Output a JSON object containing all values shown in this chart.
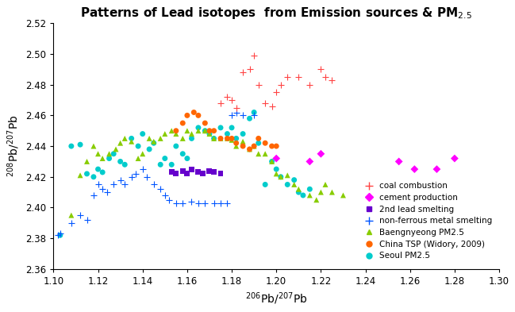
{
  "title": "Patterns of Lead isotopes  from Emission sources & PM$_{2.5}$",
  "xlabel": "$^{206}$Pb/$^{207}$Pb",
  "ylabel": "$^{208}$Pb/$^{207}$Pb",
  "xlim": [
    1.1,
    1.3
  ],
  "ylim": [
    2.36,
    2.52
  ],
  "xticks": [
    1.1,
    1.12,
    1.14,
    1.16,
    1.18,
    1.2,
    1.22,
    1.24,
    1.26,
    1.28,
    1.3
  ],
  "yticks": [
    2.36,
    2.38,
    2.4,
    2.42,
    2.44,
    2.46,
    2.48,
    2.5,
    2.52
  ],
  "coal_combustion": {
    "x": [
      1.175,
      1.178,
      1.18,
      1.182,
      1.185,
      1.188,
      1.19,
      1.192,
      1.195,
      1.198,
      1.2,
      1.202,
      1.205,
      1.21,
      1.215,
      1.22,
      1.222,
      1.225
    ],
    "y": [
      2.468,
      2.472,
      2.47,
      2.465,
      2.488,
      2.49,
      2.499,
      2.48,
      2.468,
      2.466,
      2.475,
      2.48,
      2.485,
      2.485,
      2.48,
      2.49,
      2.485,
      2.483
    ],
    "color": "#FF4444",
    "marker": "+",
    "markersize": 6,
    "label": "coal combustion"
  },
  "cement_production": {
    "x": [
      1.2,
      1.215,
      1.22,
      1.255,
      1.262,
      1.272,
      1.28
    ],
    "y": [
      2.432,
      2.43,
      2.435,
      2.43,
      2.425,
      2.425,
      2.432
    ],
    "color": "#FF00FF",
    "marker": "D",
    "markersize": 5,
    "label": "cement production"
  },
  "lead_smelting": {
    "x": [
      1.153,
      1.155,
      1.158,
      1.16,
      1.162,
      1.165,
      1.167,
      1.17,
      1.172,
      1.175
    ],
    "y": [
      2.423,
      2.422,
      2.424,
      2.422,
      2.425,
      2.423,
      2.422,
      2.424,
      2.423,
      2.422
    ],
    "color": "#6600CC",
    "marker": "s",
    "markersize": 5,
    "label": "2nd lead smelting"
  },
  "nonferrous_smelting": {
    "x": [
      1.102,
      1.103,
      1.108,
      1.112,
      1.115,
      1.118,
      1.12,
      1.122,
      1.124,
      1.127,
      1.13,
      1.132,
      1.135,
      1.137,
      1.14,
      1.142,
      1.145,
      1.148,
      1.15,
      1.152,
      1.155,
      1.158,
      1.162,
      1.165,
      1.168,
      1.172,
      1.175,
      1.178,
      1.18,
      1.182,
      1.185,
      1.19
    ],
    "y": [
      2.382,
      2.383,
      2.39,
      2.395,
      2.392,
      2.408,
      2.415,
      2.412,
      2.41,
      2.415,
      2.418,
      2.415,
      2.42,
      2.422,
      2.425,
      2.42,
      2.415,
      2.412,
      2.408,
      2.405,
      2.403,
      2.403,
      2.404,
      2.403,
      2.403,
      2.403,
      2.403,
      2.403,
      2.46,
      2.462,
      2.46,
      2.46
    ],
    "color": "#0055FF",
    "marker": "+",
    "markersize": 6,
    "label": "non-ferrous metal smelting"
  },
  "baengnyeong": {
    "x": [
      1.108,
      1.112,
      1.115,
      1.118,
      1.12,
      1.122,
      1.125,
      1.128,
      1.13,
      1.132,
      1.135,
      1.138,
      1.14,
      1.143,
      1.145,
      1.148,
      1.15,
      1.153,
      1.155,
      1.158,
      1.16,
      1.162,
      1.165,
      1.168,
      1.17,
      1.172,
      1.175,
      1.178,
      1.18,
      1.182,
      1.185,
      1.188,
      1.19,
      1.192,
      1.195,
      1.198,
      1.2,
      1.202,
      1.205,
      1.208,
      1.21,
      1.215,
      1.218,
      1.22,
      1.222,
      1.225,
      1.23
    ],
    "y": [
      2.395,
      2.421,
      2.43,
      2.44,
      2.435,
      2.432,
      2.435,
      2.438,
      2.442,
      2.445,
      2.443,
      2.432,
      2.435,
      2.445,
      2.443,
      2.445,
      2.448,
      2.45,
      2.448,
      2.445,
      2.45,
      2.448,
      2.45,
      2.45,
      2.448,
      2.445,
      2.445,
      2.445,
      2.444,
      2.44,
      2.443,
      2.438,
      2.44,
      2.435,
      2.435,
      2.43,
      2.422,
      2.42,
      2.421,
      2.415,
      2.412,
      2.408,
      2.405,
      2.41,
      2.415,
      2.41,
      2.408
    ],
    "color": "#88CC00",
    "marker": "^",
    "markersize": 5,
    "label": "Baengnyeong PM2.5"
  },
  "china_tsp": {
    "x": [
      1.155,
      1.158,
      1.16,
      1.163,
      1.165,
      1.168,
      1.17,
      1.172,
      1.175,
      1.178,
      1.18,
      1.182,
      1.185,
      1.188,
      1.19,
      1.192,
      1.195,
      1.198,
      1.2
    ],
    "y": [
      2.45,
      2.455,
      2.46,
      2.462,
      2.46,
      2.455,
      2.45,
      2.45,
      2.445,
      2.445,
      2.445,
      2.442,
      2.44,
      2.438,
      2.44,
      2.445,
      2.442,
      2.44,
      2.44
    ],
    "color": "#FF6600",
    "marker": "o",
    "markersize": 5,
    "label": "China TSP (Widory, 2009)"
  },
  "seoul_pm25": {
    "x": [
      1.103,
      1.108,
      1.112,
      1.115,
      1.118,
      1.12,
      1.122,
      1.125,
      1.127,
      1.13,
      1.132,
      1.135,
      1.138,
      1.14,
      1.143,
      1.145,
      1.148,
      1.15,
      1.153,
      1.155,
      1.158,
      1.16,
      1.162,
      1.165,
      1.168,
      1.17,
      1.172,
      1.175,
      1.178,
      1.18,
      1.182,
      1.185,
      1.188,
      1.19,
      1.192,
      1.195,
      1.198,
      1.2,
      1.202,
      1.205,
      1.208,
      1.21,
      1.212,
      1.215
    ],
    "y": [
      2.382,
      2.44,
      2.441,
      2.422,
      2.42,
      2.425,
      2.423,
      2.432,
      2.435,
      2.43,
      2.428,
      2.445,
      2.44,
      2.448,
      2.438,
      2.442,
      2.428,
      2.432,
      2.428,
      2.44,
      2.435,
      2.432,
      2.445,
      2.452,
      2.45,
      2.448,
      2.445,
      2.452,
      2.448,
      2.452,
      2.445,
      2.448,
      2.458,
      2.462,
      2.442,
      2.415,
      2.43,
      2.425,
      2.42,
      2.415,
      2.418,
      2.41,
      2.408,
      2.412
    ],
    "color": "#00CCCC",
    "marker": "o",
    "markersize": 5,
    "label": "Seoul PM2.5"
  },
  "legend_fontsize": 7.5,
  "title_fontsize": 11,
  "axis_fontsize": 10,
  "tick_fontsize": 8.5
}
